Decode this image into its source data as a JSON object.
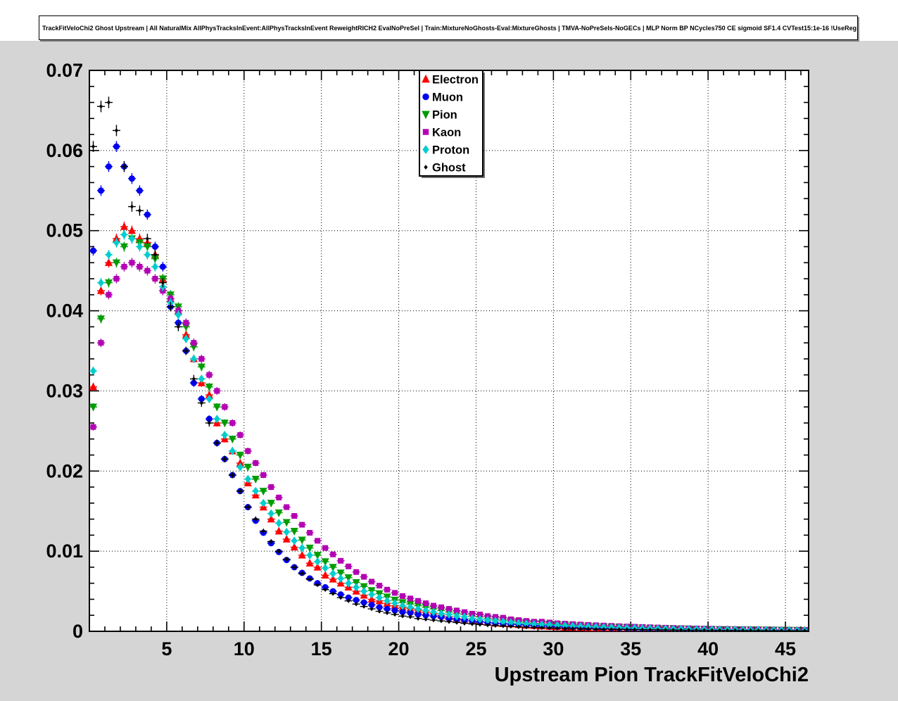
{
  "title": "TrackFitVeloChi2 Ghost Upstream | All NaturalMix AllPhysTracksInEvent:AllPhysTracksInEvent ReweightRICH2 EvalNoPreSel | Train:MixtureNoGhosts-Eval:MixtureGhosts | TMVA-NoPreSels-NoGECs | MLP Norm BP NCycles750 CE sigmoid SF1.4 CVTest15:1e-16 !UseReg",
  "colors": {
    "pad_background": "#d5d5d5",
    "frame_background": "#ffffff",
    "axis": "#000000"
  },
  "chart_data": {
    "type": "scatter",
    "title": "",
    "xlabel": "Upstream Pion TrackFitVeloChi2",
    "ylabel": "",
    "xlim": [
      0,
      46.5
    ],
    "ylim": [
      0,
      0.07
    ],
    "grid": true,
    "legend_position": "top-center",
    "x_ticks": [
      5,
      10,
      15,
      20,
      25,
      30,
      35,
      40,
      45
    ],
    "y_ticks": [
      0,
      0.01,
      0.02,
      0.03,
      0.04,
      0.05,
      0.06,
      0.07
    ],
    "y_tick_labels": [
      "0",
      "0.01",
      "0.02",
      "0.03",
      "0.04",
      "0.05",
      "0.06",
      "0.07"
    ],
    "error_model": {
      "type": "sqrt",
      "coeff": 0.0028,
      "bin_halfwidth": 0.25
    },
    "x": [
      0.25,
      0.75,
      1.25,
      1.75,
      2.25,
      2.75,
      3.25,
      3.75,
      4.25,
      4.75,
      5.25,
      5.75,
      6.25,
      6.75,
      7.25,
      7.75,
      8.25,
      8.75,
      9.25,
      9.75,
      10.25,
      10.75,
      11.25,
      11.75,
      12.25,
      12.75,
      13.25,
      13.75,
      14.25,
      14.75,
      15.25,
      15.75,
      16.25,
      16.75,
      17.25,
      17.75,
      18.25,
      18.75,
      19.25,
      19.75,
      20.25,
      20.75,
      21.25,
      21.75,
      22.25,
      22.75,
      23.25,
      23.75,
      24.25,
      24.75,
      25.25,
      25.75,
      26.25,
      26.75,
      27.25,
      27.75,
      28.25,
      28.75,
      29.25,
      29.75,
      30.25,
      30.75,
      31.25,
      31.75,
      32.25,
      32.75,
      33.25,
      33.75,
      34.25,
      34.75,
      35.25,
      35.75,
      36.25,
      36.75,
      37.25,
      37.75,
      38.25,
      38.75,
      39.25,
      39.75,
      40.25,
      40.75,
      41.25,
      41.75,
      42.25,
      42.75,
      43.25,
      43.75,
      44.25,
      44.75,
      45.25,
      45.75,
      46.25
    ],
    "series": [
      {
        "name": "Electron",
        "color": "#ff0000",
        "marker": "triangle-up",
        "values": [
          0.0305,
          0.0425,
          0.046,
          0.049,
          0.0505,
          0.05,
          0.049,
          0.0485,
          0.047,
          0.044,
          0.0415,
          0.04,
          0.037,
          0.034,
          0.031,
          0.0295,
          0.026,
          0.024,
          0.0225,
          0.021,
          0.0185,
          0.017,
          0.0155,
          0.014,
          0.0125,
          0.0115,
          0.0105,
          0.0095,
          0.0085,
          0.008,
          0.007,
          0.0065,
          0.006,
          0.0055,
          0.005,
          0.0045,
          0.004,
          0.0038,
          0.0035,
          0.0032,
          0.003,
          0.00285,
          0.00265,
          0.0024,
          0.0022,
          0.002,
          0.0018,
          0.0016,
          0.0015,
          0.0013,
          0.0012,
          0.0011,
          0.001,
          0.00095,
          0.0009,
          0.00082,
          0.00075,
          0.0007,
          0.00065,
          0.0006,
          0.00055,
          0.0005,
          0.00048,
          0.00045,
          0.00042,
          0.0004,
          0.00038,
          0.00036,
          0.00034,
          0.00032,
          0.0003,
          0.00029,
          0.00028,
          0.00027,
          0.00026,
          0.00025,
          0.00024,
          0.00023,
          0.00022,
          0.00021,
          0.0002,
          0.00019,
          0.00019,
          0.00018,
          0.00017,
          0.00016,
          0.00016,
          0.00015,
          0.00014,
          0.00013,
          0.00013,
          0.00012,
          0.00012
        ]
      },
      {
        "name": "Muon",
        "color": "#0000f0",
        "marker": "circle",
        "values": [
          0.0475,
          0.055,
          0.058,
          0.0605,
          0.058,
          0.0565,
          0.055,
          0.052,
          0.048,
          0.0455,
          0.0405,
          0.0385,
          0.035,
          0.031,
          0.029,
          0.0265,
          0.0235,
          0.0215,
          0.0195,
          0.0175,
          0.0155,
          0.0138,
          0.0123,
          0.011,
          0.0099,
          0.0089,
          0.008,
          0.0073,
          0.0066,
          0.006,
          0.0055,
          0.005,
          0.0046,
          0.0042,
          0.0039,
          0.0036,
          0.0033,
          0.003,
          0.0028,
          0.0026,
          0.0024,
          0.0023,
          0.0021,
          0.002,
          0.0019,
          0.0018,
          0.0016,
          0.0015,
          0.0014,
          0.0013,
          0.0012,
          0.0011,
          0.001,
          0.00095,
          0.0009,
          0.00085,
          0.0008,
          0.00075,
          0.0007,
          0.00065,
          0.0006,
          0.00057,
          0.00054,
          0.00051,
          0.00048,
          0.00045,
          0.00042,
          0.0004,
          0.00038,
          0.00036,
          0.00034,
          0.00032,
          0.0003,
          0.00029,
          0.00027,
          0.00026,
          0.00025,
          0.00024,
          0.00023,
          0.00022,
          0.00021,
          0.0002,
          0.00019,
          0.00018,
          0.00017,
          0.00016,
          0.00015,
          0.00015,
          0.00014,
          0.00013,
          0.00013,
          0.00012,
          0.00012
        ]
      },
      {
        "name": "Pion",
        "color": "#009c00",
        "marker": "triangle-down",
        "values": [
          0.028,
          0.039,
          0.0435,
          0.046,
          0.048,
          0.049,
          0.0485,
          0.048,
          0.0465,
          0.044,
          0.042,
          0.0405,
          0.038,
          0.0355,
          0.033,
          0.0305,
          0.028,
          0.026,
          0.024,
          0.022,
          0.0205,
          0.019,
          0.0175,
          0.016,
          0.0148,
          0.0136,
          0.0125,
          0.0114,
          0.0104,
          0.0095,
          0.0087,
          0.008,
          0.0073,
          0.0067,
          0.0061,
          0.0056,
          0.0051,
          0.0047,
          0.0043,
          0.0039,
          0.0036,
          0.0034,
          0.0032,
          0.003,
          0.0028,
          0.0026,
          0.0024,
          0.0022,
          0.0021,
          0.0019,
          0.0018,
          0.0016,
          0.0015,
          0.0014,
          0.0013,
          0.0012,
          0.0011,
          0.001,
          0.00095,
          0.0009,
          0.00085,
          0.0008,
          0.00075,
          0.0007,
          0.00066,
          0.00062,
          0.00058,
          0.00055,
          0.00052,
          0.00049,
          0.00046,
          0.00043,
          0.0004,
          0.00038,
          0.00036,
          0.00034,
          0.00032,
          0.0003,
          0.00028,
          0.00027,
          0.00025,
          0.00024,
          0.00023,
          0.00022,
          0.00021,
          0.0002,
          0.00019,
          0.00018,
          0.00017,
          0.00016,
          0.00015,
          0.00014,
          0.00013
        ]
      },
      {
        "name": "Kaon",
        "color": "#b300b3",
        "marker": "square",
        "values": [
          0.0255,
          0.036,
          0.042,
          0.044,
          0.0455,
          0.046,
          0.0455,
          0.045,
          0.044,
          0.0425,
          0.0415,
          0.04,
          0.0385,
          0.036,
          0.034,
          0.032,
          0.03,
          0.028,
          0.026,
          0.0245,
          0.0225,
          0.021,
          0.0195,
          0.018,
          0.0167,
          0.0155,
          0.0144,
          0.0133,
          0.0123,
          0.0113,
          0.0104,
          0.0096,
          0.0088,
          0.0081,
          0.0074,
          0.0068,
          0.0062,
          0.0057,
          0.0052,
          0.0048,
          0.0044,
          0.0041,
          0.0038,
          0.0035,
          0.0032,
          0.003,
          0.0028,
          0.0026,
          0.0024,
          0.0022,
          0.0021,
          0.0019,
          0.0018,
          0.0017,
          0.0015,
          0.0014,
          0.0013,
          0.0012,
          0.0012,
          0.0011,
          0.001,
          0.00095,
          0.0009,
          0.00085,
          0.0008,
          0.00076,
          0.00072,
          0.00068,
          0.00064,
          0.0006,
          0.00057,
          0.00054,
          0.00051,
          0.00048,
          0.00045,
          0.00043,
          0.0004,
          0.00038,
          0.00036,
          0.00034,
          0.00032,
          0.0003,
          0.00029,
          0.00027,
          0.00026,
          0.00024,
          0.00023,
          0.00022,
          0.00021,
          0.0002,
          0.00019,
          0.00018,
          0.00017
        ]
      },
      {
        "name": "Proton",
        "color": "#00cdcd",
        "marker": "diamond",
        "values": [
          0.0325,
          0.0435,
          0.047,
          0.0485,
          0.0495,
          0.049,
          0.048,
          0.047,
          0.0455,
          0.043,
          0.041,
          0.0395,
          0.0365,
          0.034,
          0.0315,
          0.029,
          0.0265,
          0.0245,
          0.0225,
          0.0205,
          0.019,
          0.0175,
          0.016,
          0.0147,
          0.0135,
          0.0124,
          0.0113,
          0.0104,
          0.0095,
          0.0087,
          0.0079,
          0.0072,
          0.0066,
          0.006,
          0.0055,
          0.005,
          0.0046,
          0.0042,
          0.0038,
          0.0035,
          0.0032,
          0.003,
          0.0028,
          0.0026,
          0.0024,
          0.0022,
          0.0021,
          0.0019,
          0.0018,
          0.0016,
          0.0015,
          0.0014,
          0.0013,
          0.0012,
          0.0011,
          0.001,
          0.00095,
          0.0009,
          0.00085,
          0.0008,
          0.00075,
          0.0007,
          0.00066,
          0.00062,
          0.00058,
          0.00054,
          0.00051,
          0.00048,
          0.00045,
          0.00042,
          0.0004,
          0.00037,
          0.00035,
          0.00033,
          0.00031,
          0.00029,
          0.00028,
          0.00026,
          0.00025,
          0.00023,
          0.00022,
          0.00021,
          0.0002,
          0.00019,
          0.00018,
          0.00017,
          0.00016,
          0.00015,
          0.00014,
          0.00013,
          0.00013,
          0.00012,
          0.00011
        ]
      },
      {
        "name": "Ghost",
        "color": "#000000",
        "marker": "small-diamond",
        "values": [
          0.0605,
          0.0655,
          0.066,
          0.0625,
          0.058,
          0.053,
          0.0525,
          0.049,
          0.047,
          0.0435,
          0.0405,
          0.038,
          0.035,
          0.0315,
          0.0285,
          0.026,
          0.0235,
          0.0215,
          0.0195,
          0.0175,
          0.0155,
          0.014,
          0.0125,
          0.0112,
          0.01,
          0.009,
          0.008,
          0.0072,
          0.0065,
          0.0058,
          0.0052,
          0.0047,
          0.0042,
          0.0038,
          0.0034,
          0.0031,
          0.0028,
          0.0025,
          0.0023,
          0.0021,
          0.0019,
          0.0018,
          0.0016,
          0.0015,
          0.0014,
          0.0013,
          0.0012,
          0.0011,
          0.001,
          0.00092,
          0.00085,
          0.00078,
          0.00072,
          0.00066,
          0.00061,
          0.00056,
          0.00052,
          0.00048,
          0.00045,
          0.00042,
          0.00039,
          0.00036,
          0.00034,
          0.00032,
          0.0003,
          0.00028,
          0.00026,
          0.00025,
          0.00023,
          0.00022,
          0.00021,
          0.0002,
          0.00019,
          0.00018,
          0.00017,
          0.00016,
          0.00015,
          0.00014,
          0.00014,
          0.00013,
          0.00012,
          0.00012,
          0.00011,
          0.00011,
          0.0001,
          0.0001,
          9e-05,
          9e-05,
          8e-05,
          8e-05,
          8e-05,
          7e-05,
          7e-05
        ]
      }
    ]
  }
}
